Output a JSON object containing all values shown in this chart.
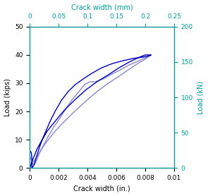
{
  "title_top": "Crack width (mm)",
  "xlabel_bottom": "Crack width (in.)",
  "ylabel_left": "Load (kips)",
  "ylabel_right": "Load (kN)",
  "xlim_in": [
    0,
    0.01
  ],
  "xlim_mm": [
    0,
    0.25
  ],
  "ylim_kips": [
    0,
    50
  ],
  "ylim_kN": [
    0,
    200
  ],
  "xticks_in": [
    0,
    0.002,
    0.004,
    0.006,
    0.008,
    0.01
  ],
  "xticks_mm": [
    0,
    0.05,
    0.1,
    0.15,
    0.2,
    0.25
  ],
  "yticks_kips": [
    0,
    10,
    20,
    30,
    40,
    50
  ],
  "yticks_kN": [
    0,
    50,
    100,
    150,
    200
  ],
  "line1_color": "#0000bb",
  "line2_color": "#8888cc",
  "line1_x": [
    0.0,
    0.0001,
    0.00015,
    0.00015,
    0.00013,
    0.0002,
    0.00028,
    0.00038,
    0.00052,
    0.00068,
    0.0009,
    0.00115,
    0.00145,
    0.0018,
    0.0022,
    0.00265,
    0.00315,
    0.0037,
    0.0043,
    0.005,
    0.00575,
    0.0065,
    0.0072,
    0.0078,
    0.0082,
    0.0084,
    0.0084,
    0.008,
    0.0075,
    0.0069,
    0.0062,
    0.00545,
    0.00465,
    0.00385,
    0.0031,
    0.0024,
    0.00175,
    0.0012,
    0.0008,
    0.00048,
    0.00025,
    0.0001,
    2e-05
  ],
  "line1_y": [
    6.0,
    5.5,
    3.0,
    1.0,
    0.0,
    0.3,
    1.0,
    2.5,
    5.0,
    7.5,
    10.5,
    13.5,
    17.0,
    20.5,
    24.0,
    27.0,
    29.5,
    31.5,
    33.5,
    35.5,
    37.0,
    38.0,
    38.8,
    39.2,
    39.6,
    39.9,
    40.0,
    40.0,
    39.0,
    37.5,
    35.5,
    33.0,
    30.5,
    27.5,
    24.0,
    20.5,
    16.5,
    13.0,
    9.5,
    6.5,
    3.5,
    1.5,
    0.2
  ],
  "line2_x": [
    5e-05,
    0.0001,
    0.00015,
    0.0002,
    0.0003,
    0.00045,
    0.00065,
    0.0009,
    0.0012,
    0.0016,
    0.002,
    0.00245,
    0.0029,
    0.0034,
    0.0038,
    0.00415,
    0.00435,
    0.00455,
    0.0048,
    0.0051,
    0.0056,
    0.0062,
    0.0069,
    0.0076,
    0.0082,
    0.0084,
    0.0084,
    0.008,
    0.0075,
    0.0069,
    0.0062,
    0.00545,
    0.00465,
    0.00385,
    0.0031,
    0.0024,
    0.00175,
    0.0012,
    0.00078,
    0.00048,
    0.00025
  ],
  "line2_y": [
    3.5,
    3.0,
    2.0,
    1.5,
    1.0,
    2.5,
    5.0,
    7.5,
    10.5,
    14.0,
    17.0,
    20.5,
    24.0,
    27.0,
    29.5,
    30.5,
    30.5,
    30.5,
    31.0,
    31.5,
    33.0,
    34.5,
    36.5,
    38.0,
    39.5,
    40.0,
    40.0,
    38.5,
    37.0,
    35.0,
    32.5,
    30.0,
    27.0,
    23.5,
    20.0,
    16.5,
    13.0,
    9.5,
    6.5,
    4.0,
    2.0
  ],
  "figsize": [
    2.95,
    2.78
  ],
  "dpi": 100,
  "tick_fontsize": 6.5,
  "label_fontsize": 7.0,
  "linewidth": 1.0,
  "axis_color": "#009999",
  "spine_color": "#333333",
  "top_right_axis_color": "#009999"
}
